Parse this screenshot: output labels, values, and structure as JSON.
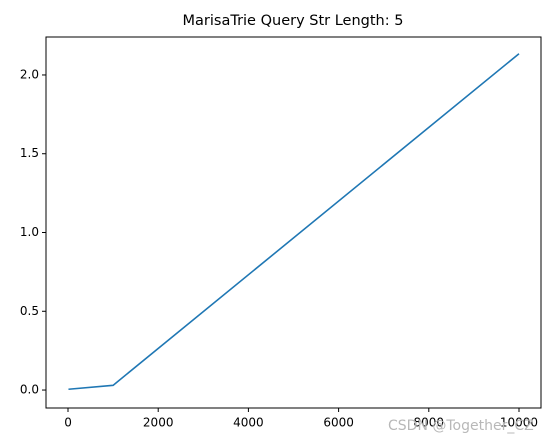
{
  "chart_data": {
    "type": "line",
    "title": "MarisaTrie Query Str Length: 5",
    "x": [
      10,
      1000,
      10000
    ],
    "series": [
      {
        "color": "#1f77b4",
        "values": [
          0.005,
          0.03,
          2.135
        ]
      }
    ],
    "xlim": [
      -488,
      10488
    ],
    "ylim": [
      -0.114,
      2.241
    ],
    "xticks": [
      0,
      2000,
      4000,
      6000,
      8000,
      10000
    ],
    "yticks": [
      {
        "value": 0,
        "label": "0.0"
      },
      {
        "value": 0.5,
        "label": "0.5"
      },
      {
        "value": 1,
        "label": "1.0"
      },
      {
        "value": 1.5,
        "label": "1.5"
      },
      {
        "value": 2,
        "label": "2.0"
      }
    ],
    "watermark": "CSDN @Together_CZ"
  }
}
